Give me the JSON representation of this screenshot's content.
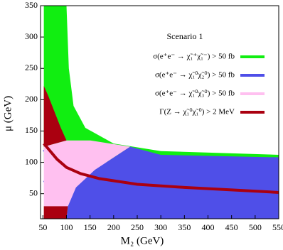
{
  "chart_data": {
    "type": "region",
    "annotation": "Scenario 1",
    "x_label": "M₂ (GeV)",
    "y_label": "μ (GeV)",
    "xlim": [
      45,
      550
    ],
    "ylim": [
      10,
      350
    ],
    "xticks": [
      50,
      100,
      150,
      200,
      250,
      300,
      350,
      400,
      450,
      500,
      550
    ],
    "yticks": [
      50,
      100,
      150,
      200,
      250,
      300,
      350
    ],
    "series": [
      {
        "name": "σ(e⁺e⁻ → χ̃₁⁺χ̃₁⁻) > 50 fb",
        "color": "#11ee11",
        "shapes": [
          {
            "filled": true,
            "x": [
              52,
              100,
              105,
              115,
              140,
              200,
              300,
              550,
              550,
              52
            ],
            "y": [
              350,
              350,
              250,
              190,
              155,
              130,
              118,
              112,
              100,
              100
            ]
          }
        ]
      },
      {
        "name": "σ(e⁺e⁻ → χ̃₁⁰χ̃₂⁰) > 50 fb",
        "color": "#4f4fe8",
        "shapes": [
          {
            "filled": true,
            "x": [
              100,
              550,
              550,
              300,
              235,
              160,
              120,
              103
            ],
            "y": [
              10,
              10,
              108,
              112,
              125,
              88,
              60,
              30
            ]
          },
          {
            "filled": false,
            "x": [
              52,
              62,
              70,
              72,
              70,
              62,
              52
            ],
            "y": [
              120,
              112,
              100,
              92,
              85,
              72,
              68
            ]
          }
        ]
      },
      {
        "name": "σ(e⁺e⁻ → χ̃₁⁰χ̃₃⁰) > 50 fb",
        "color": "#ffc0f0",
        "shapes": [
          {
            "filled": true,
            "x": [
              52,
              103,
              120,
              160,
              235,
              150,
              100,
              52
            ],
            "y": [
              30,
              30,
              60,
              88,
              125,
              135,
              135,
              125
            ]
          }
        ]
      },
      {
        "name": "Γ(Z → χ̃₁⁰χ̃₁⁰) > 2 MeV",
        "color": "#aa0010",
        "shapes": [
          {
            "filled": true,
            "x": [
              52,
              62,
              75,
              88,
              100,
              52
            ],
            "y": [
              222,
              205,
              180,
              155,
              135,
              125
            ]
          },
          {
            "filled": true,
            "x": [
              52,
              100,
              103,
              52
            ],
            "y": [
              10,
              10,
              30,
              30
            ]
          },
          {
            "filled": false,
            "x": [
              52,
              80,
              100,
              130,
              170,
              250,
              350,
              450,
              550
            ],
            "y": [
              130,
              105,
              92,
              82,
              74,
              65,
              60,
              56,
              52
            ]
          }
        ]
      }
    ]
  }
}
